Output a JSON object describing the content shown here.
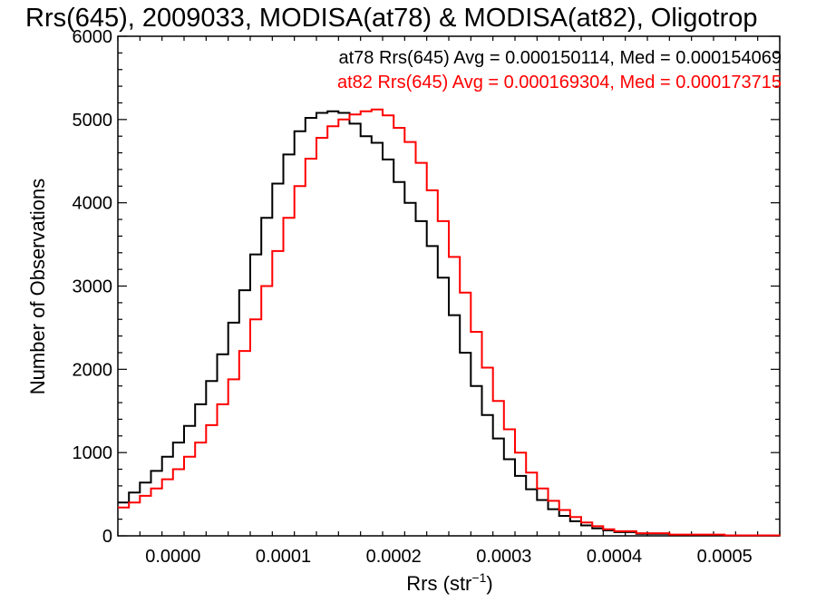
{
  "chart_data": {
    "type": "line",
    "title": "Rrs(645), 2009033, MODISA(at78) & MODISA(at82), Oligotrop",
    "xlabel": "Rrs (str",
    "xlabel_sup": "−1",
    "xlabel_close": ")",
    "ylabel": "Number of Observations",
    "xlim": [
      -5e-05,
      0.00055
    ],
    "ylim": [
      0,
      6000
    ],
    "x_ticks": [
      0.0,
      0.0001,
      0.0002,
      0.0003,
      0.0004,
      0.0005
    ],
    "x_tick_labels": [
      "0.0000",
      "0.0001",
      "0.0002",
      "0.0003",
      "0.0004",
      "0.0005"
    ],
    "y_ticks": [
      0,
      1000,
      2000,
      3000,
      4000,
      5000,
      6000
    ],
    "y_tick_labels": [
      "0",
      "1000",
      "2000",
      "3000",
      "4000",
      "5000",
      "6000"
    ],
    "grid": false,
    "legend_position": "top-right",
    "series": [
      {
        "label": "at78 Rrs(645) Avg = 0.000150114, Med = 0.000154069",
        "color": "#000000",
        "x": [
          -5e-05,
          -4e-05,
          -3e-05,
          -2e-05,
          -1e-05,
          0.0,
          1e-05,
          2e-05,
          3e-05,
          4e-05,
          5e-05,
          6e-05,
          7e-05,
          8e-05,
          9e-05,
          0.0001,
          0.00011,
          0.00012,
          0.00013,
          0.00014,
          0.00015,
          0.00016,
          0.00017,
          0.00018,
          0.00019,
          0.0002,
          0.00021,
          0.00022,
          0.00023,
          0.00024,
          0.00025,
          0.00026,
          0.00027,
          0.00028,
          0.00029,
          0.0003,
          0.00031,
          0.00032,
          0.00033,
          0.00034,
          0.00035,
          0.00036,
          0.00037,
          0.00038,
          0.00039,
          0.0004,
          0.00042,
          0.00045,
          0.0005,
          0.00055
        ],
        "y": [
          400,
          520,
          640,
          780,
          950,
          1120,
          1320,
          1580,
          1860,
          2180,
          2560,
          2950,
          3380,
          3820,
          4230,
          4580,
          4860,
          5020,
          5080,
          5100,
          5080,
          4950,
          4800,
          4720,
          4520,
          4250,
          4000,
          3780,
          3480,
          3100,
          2650,
          2200,
          1800,
          1450,
          1170,
          920,
          720,
          560,
          430,
          320,
          240,
          175,
          125,
          90,
          65,
          45,
          25,
          10,
          3,
          1
        ]
      },
      {
        "label": "at82 Rrs(645) Avg = 0.000169304, Med = 0.000173715",
        "color": "#ff0000",
        "x": [
          -5e-05,
          -4e-05,
          -3e-05,
          -2e-05,
          -1e-05,
          0.0,
          1e-05,
          2e-05,
          3e-05,
          4e-05,
          5e-05,
          6e-05,
          7e-05,
          8e-05,
          9e-05,
          0.0001,
          0.00011,
          0.00012,
          0.00013,
          0.00014,
          0.00015,
          0.00016,
          0.00017,
          0.00018,
          0.00019,
          0.0002,
          0.00021,
          0.00022,
          0.00023,
          0.00024,
          0.00025,
          0.00026,
          0.00027,
          0.00028,
          0.00029,
          0.0003,
          0.00031,
          0.00032,
          0.00033,
          0.00034,
          0.00035,
          0.00036,
          0.00037,
          0.00038,
          0.00039,
          0.0004,
          0.00042,
          0.00045,
          0.0005,
          0.00055
        ],
        "y": [
          340,
          400,
          480,
          570,
          680,
          800,
          950,
          1120,
          1330,
          1580,
          1880,
          2220,
          2600,
          3000,
          3420,
          3820,
          4200,
          4530,
          4780,
          4920,
          5000,
          5060,
          5100,
          5120,
          5050,
          4900,
          4730,
          4480,
          4150,
          3780,
          3350,
          2920,
          2450,
          2020,
          1620,
          1280,
          1000,
          760,
          570,
          420,
          310,
          225,
          160,
          115,
          80,
          55,
          32,
          15,
          5,
          2
        ]
      }
    ]
  }
}
